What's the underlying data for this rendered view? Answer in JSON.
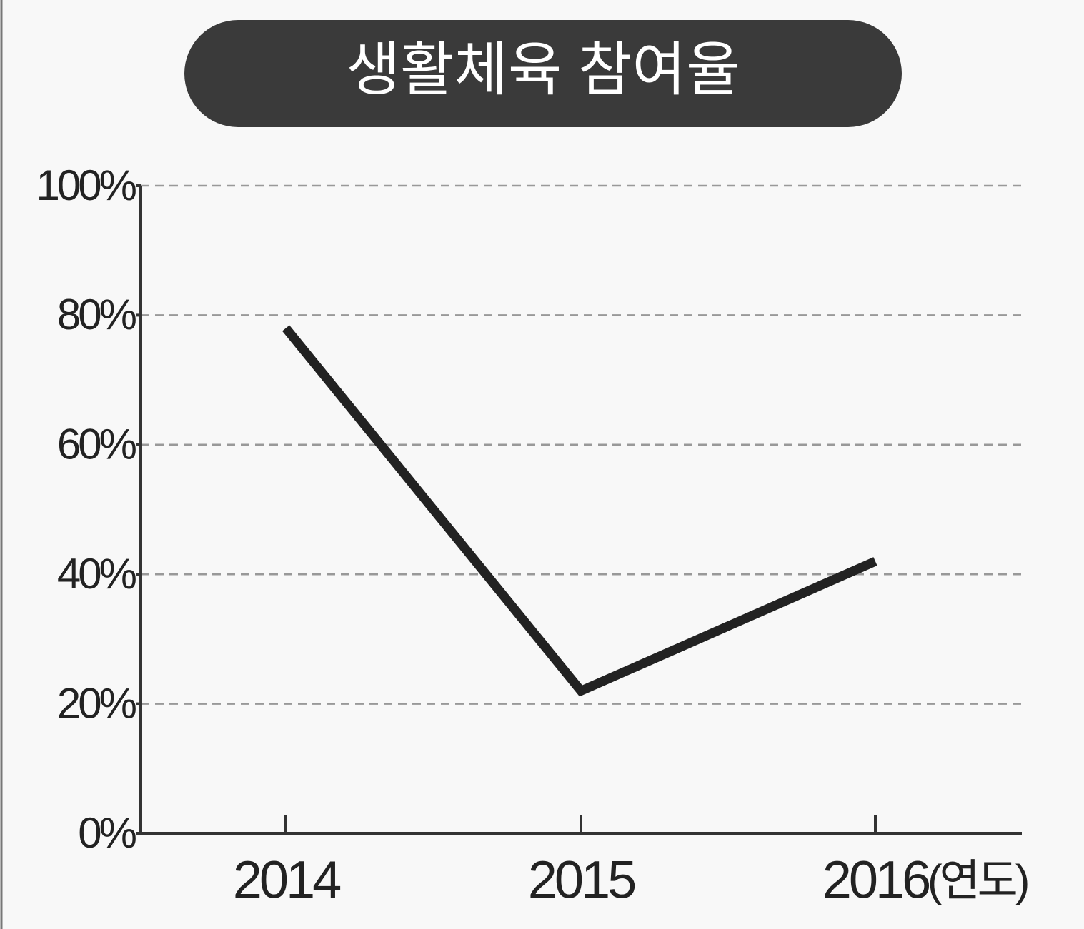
{
  "chart_data": {
    "type": "line",
    "title": "생활체육 참여율",
    "categories": [
      "2014",
      "2015",
      "2016"
    ],
    "x_label": "(연도)",
    "values": [
      78,
      22,
      42
    ],
    "color": "#222222",
    "ylim": [
      0,
      100
    ],
    "yticks": [
      {
        "value": 0,
        "label": "0%"
      },
      {
        "value": 20,
        "label": "20%"
      },
      {
        "value": 40,
        "label": "40%"
      },
      {
        "value": 60,
        "label": "60%"
      },
      {
        "value": 80,
        "label": "80%"
      },
      {
        "value": 100,
        "label": "100%"
      }
    ],
    "grid": true
  }
}
